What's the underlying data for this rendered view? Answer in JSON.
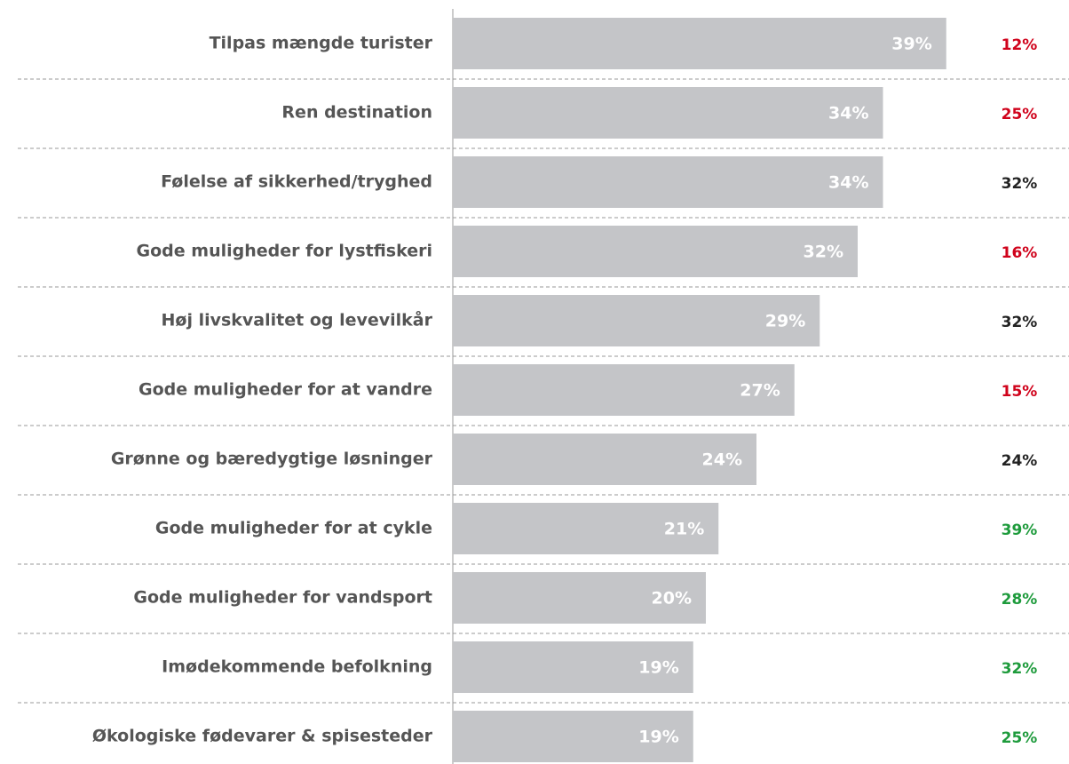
{
  "chart_data": {
    "type": "hbar",
    "categories": [
      "Tilpas mængde turister",
      "Ren destination",
      "Følelse af sikkerhed/tryghed",
      "Gode muligheder for lystfiskeri",
      "Høj livskvalitet og levevilkår",
      "Gode muligheder for at vandre",
      "Grønne og bæredygtige løsninger",
      "Gode muligheder for at cykle",
      "Gode muligheder for vandsport",
      "Imødekommende befolkning",
      "Økologiske fødevarer & spisesteder"
    ],
    "values": [
      39,
      34,
      34,
      32,
      29,
      27,
      24,
      21,
      20,
      19,
      19
    ],
    "value_labels": [
      "39%",
      "34%",
      "34%",
      "32%",
      "29%",
      "27%",
      "24%",
      "21%",
      "20%",
      "19%",
      "19%"
    ],
    "color": "#c4c5c8",
    "xlim": [
      0,
      40
    ],
    "comparison": {
      "values": [
        12,
        25,
        32,
        16,
        32,
        15,
        24,
        39,
        28,
        32,
        25
      ],
      "value_labels": [
        "12%",
        "25%",
        "32%",
        "16%",
        "32%",
        "15%",
        "24%",
        "39%",
        "28%",
        "32%",
        "25%"
      ],
      "colors": [
        "#d0021b",
        "#d0021b",
        "#222222",
        "#d0021b",
        "#222222",
        "#d0021b",
        "#222222",
        "#1e9b3c",
        "#1e9b3c",
        "#1e9b3c",
        "#1e9b3c"
      ]
    }
  }
}
